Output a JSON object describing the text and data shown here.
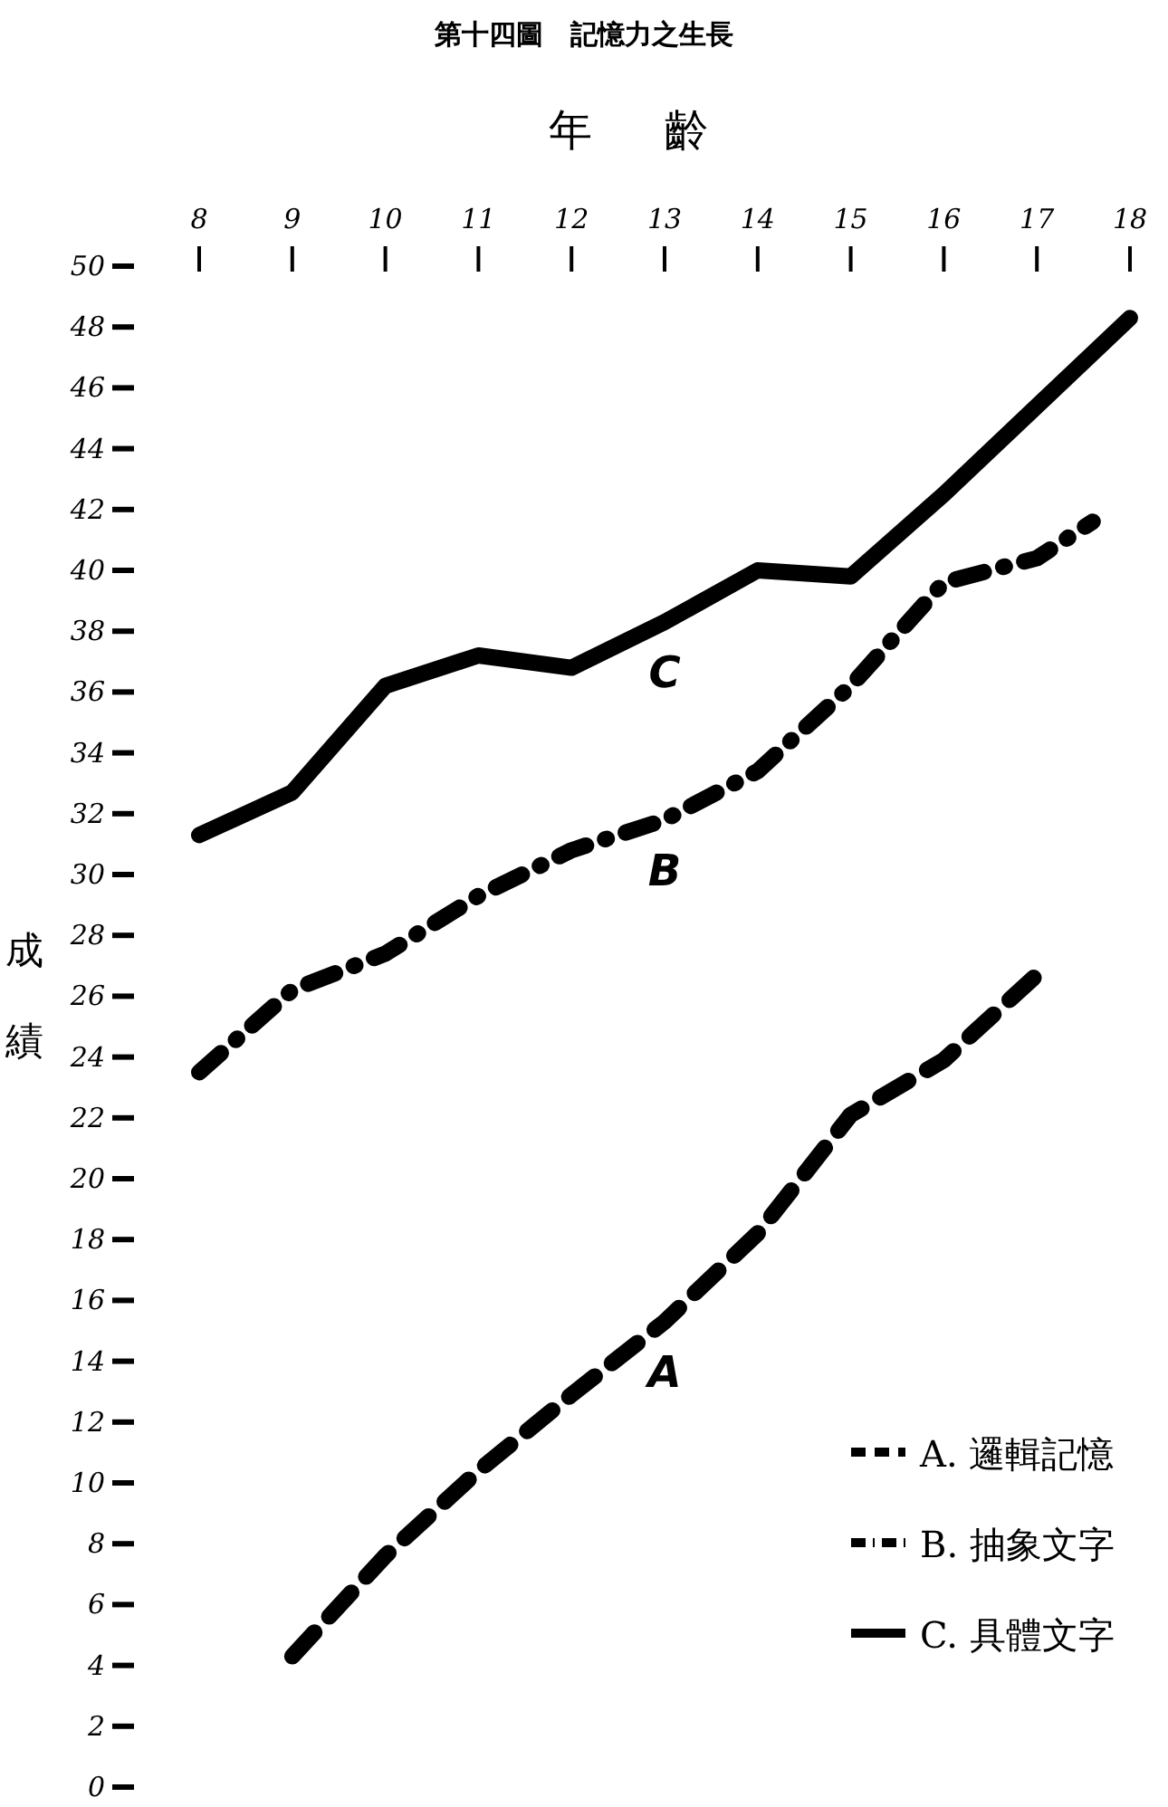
{
  "chart_data": {
    "type": "line",
    "title": "第十四圖　記憶力之生長",
    "xlabel": "年齡",
    "ylabel": "成績",
    "xlim": [
      8,
      18
    ],
    "xticks": [
      8,
      9,
      10,
      11,
      12,
      13,
      14,
      15,
      16,
      17,
      18
    ],
    "ylim": [
      0,
      50
    ],
    "yticks": [
      0,
      2,
      4,
      6,
      8,
      10,
      12,
      14,
      16,
      18,
      20,
      22,
      24,
      26,
      28,
      30,
      32,
      34,
      36,
      38,
      40,
      42,
      44,
      46,
      48,
      50
    ],
    "legend": "bottom right",
    "grid": false,
    "marker": "none",
    "series": [
      {
        "name": "A. 邏輯記憶",
        "color": "#000000",
        "line_style": "dashed",
        "x": [
          9,
          10,
          11,
          12,
          13,
          14,
          15,
          16,
          17
        ],
        "values": [
          4.3,
          7.6,
          10.4,
          12.9,
          15.3,
          18.2,
          22.1,
          23.9,
          26.7
        ]
      },
      {
        "name": "B. 抽象文字",
        "color": "#000000",
        "line_style": "dashdot",
        "x": [
          8,
          9,
          10,
          11,
          12,
          13,
          14,
          15,
          16,
          17,
          17.6
        ],
        "values": [
          23.5,
          26.2,
          27.4,
          29.3,
          30.8,
          31.8,
          33.4,
          36.2,
          39.6,
          40.4,
          41.6
        ]
      },
      {
        "name": "C. 具體文字",
        "color": "#000000",
        "line_style": "solid",
        "x": [
          8,
          9,
          10,
          11,
          12,
          13,
          14,
          15,
          16,
          17,
          18
        ],
        "values": [
          31.3,
          32.7,
          36.2,
          37.2,
          36.8,
          38.3,
          40.0,
          39.8,
          42.5,
          45.4,
          48.3
        ]
      }
    ],
    "annotations": [
      "A",
      "B",
      "C"
    ]
  }
}
